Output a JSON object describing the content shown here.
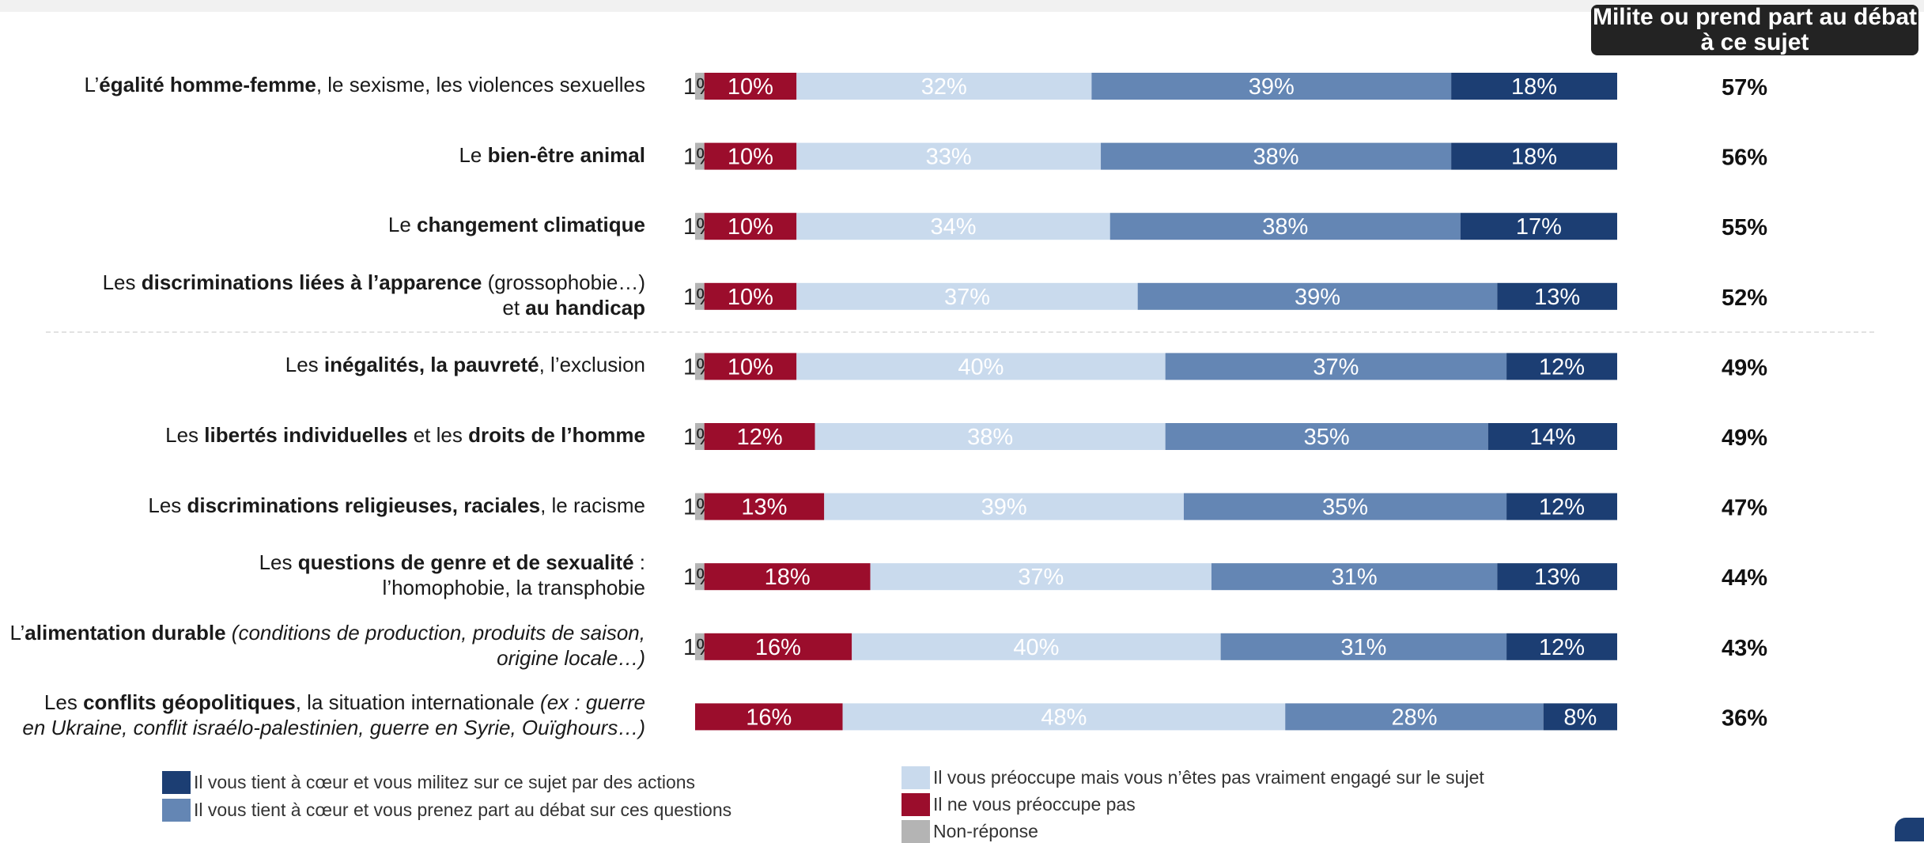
{
  "header": {
    "militant_label": "Milite ou prend part au débat à ce sujet"
  },
  "colors": {
    "nonresponse": "#b4b4b4",
    "not_concerned": "#9b0d2c",
    "concerned": "#c9daed",
    "debate": "#6486b4",
    "action": "#1c3e73"
  },
  "rows": [
    {
      "label_parts": [
        {
          "t": "L’"
        },
        {
          "t": "égalité homme-femme",
          "b": true
        },
        {
          "t": ", le sexisme, les violences sexuelles"
        }
      ]
    },
    {
      "label_parts": [
        {
          "t": "Le "
        },
        {
          "t": "bien-être animal",
          "b": true
        }
      ]
    },
    {
      "label_parts": [
        {
          "t": "Le "
        },
        {
          "t": "changement climatique",
          "b": true
        }
      ]
    },
    {
      "label_parts": [
        {
          "t": "Les "
        },
        {
          "t": "discriminations liées à l’apparence",
          "b": true
        },
        {
          "t": " (grossophobie…)"
        },
        {
          "br": true
        },
        {
          "t": "et "
        },
        {
          "t": "au handicap",
          "b": true
        }
      ]
    },
    {
      "label_parts": [
        {
          "t": "Les "
        },
        {
          "t": "inégalités, la pauvreté",
          "b": true
        },
        {
          "t": ", l’exclusion"
        }
      ]
    },
    {
      "label_parts": [
        {
          "t": "Les "
        },
        {
          "t": "libertés individuelles",
          "b": true
        },
        {
          "t": " et les "
        },
        {
          "t": "droits de l’homme",
          "b": true
        }
      ]
    },
    {
      "label_parts": [
        {
          "t": "Les "
        },
        {
          "t": "discriminations religieuses, raciales",
          "b": true
        },
        {
          "t": ", le racisme"
        }
      ]
    },
    {
      "label_parts": [
        {
          "t": "Les "
        },
        {
          "t": "questions de genre et de sexualité",
          "b": true
        },
        {
          "t": " :"
        },
        {
          "br": true
        },
        {
          "t": "l’homophobie, la transphobie"
        }
      ]
    },
    {
      "label_parts": [
        {
          "t": "L’"
        },
        {
          "t": "alimentation durable",
          "b": true
        },
        {
          "t": " "
        },
        {
          "t": "(conditions de production, produits de saison,",
          "i": true
        },
        {
          "br": true
        },
        {
          "t": "origine locale…)",
          "i": true
        }
      ]
    },
    {
      "label_parts": [
        {
          "t": "Les "
        },
        {
          "t": "conflits géopolitiques",
          "b": true
        },
        {
          "t": ", la situation internationale "
        },
        {
          "t": "(ex : guerre",
          "i": true
        },
        {
          "br": true
        },
        {
          "t": "en Ukraine, conflit israélo-palestinien, guerre en Syrie, Ouïghours…)",
          "i": true
        }
      ]
    }
  ],
  "chart_data": {
    "type": "bar",
    "orientation": "horizontal",
    "stacked": true,
    "categories": [
      "L’égalité homme-femme, le sexisme, les violences sexuelles",
      "Le bien-être animal",
      "Le changement climatique",
      "Les discriminations liées à l’apparence (grossophobie…) et au handicap",
      "Les inégalités, la pauvreté, l’exclusion",
      "Les libertés individuelles et les droits de l’homme",
      "Les discriminations religieuses, raciales, le racisme",
      "Les questions de genre et de sexualité : l’homophobie, la transphobie",
      "L’alimentation durable (conditions de production, produits de saison, origine locale…)",
      "Les conflits géopolitiques, la situation internationale (ex : guerre en Ukraine, conflit israélo-palestinien, guerre en Syrie, Ouïghours…)"
    ],
    "series": [
      {
        "name": "Non-réponse",
        "values": [
          1,
          1,
          1,
          1,
          1,
          1,
          1,
          1,
          1,
          0
        ],
        "labels": [
          "1%",
          "1%",
          "1%",
          "1%",
          "1%",
          "1%",
          "1%",
          "1%",
          "1%",
          ""
        ]
      },
      {
        "name": "Il ne vous préoccupe pas",
        "values": [
          10,
          10,
          10,
          10,
          10,
          12,
          13,
          18,
          16,
          16
        ]
      },
      {
        "name": "Il vous préoccupe mais vous n’êtes pas vraiment engagé sur le sujet",
        "values": [
          32,
          33,
          34,
          37,
          40,
          38,
          39,
          37,
          40,
          48
        ]
      },
      {
        "name": "Il vous tient à cœur et vous prenez part au débat sur ces questions",
        "values": [
          39,
          38,
          38,
          39,
          37,
          35,
          35,
          31,
          31,
          28
        ]
      },
      {
        "name": "Il vous tient à cœur et vous militez sur ce sujet par des actions",
        "values": [
          18,
          18,
          17,
          13,
          12,
          14,
          12,
          13,
          12,
          8
        ]
      }
    ],
    "totals": {
      "name": "Milite ou prend part au débat à ce sujet",
      "values": [
        57,
        56,
        55,
        52,
        49,
        49,
        47,
        44,
        43,
        36
      ]
    },
    "xlim": [
      0,
      100
    ],
    "legend_position": "bottom",
    "grid": false
  },
  "legend": [
    {
      "key": "action",
      "label": "Il vous tient à cœur et vous militez sur ce sujet par des actions"
    },
    {
      "key": "debate",
      "label": "Il vous tient à cœur et vous prenez part au débat sur ces questions"
    },
    {
      "key": "concerned",
      "label": "Il vous préoccupe mais vous n’êtes pas vraiment engagé sur le sujet"
    },
    {
      "key": "not_concerned",
      "label": "Il ne vous préoccupe pas"
    },
    {
      "key": "nonresponse",
      "label": "Non-réponse"
    }
  ]
}
